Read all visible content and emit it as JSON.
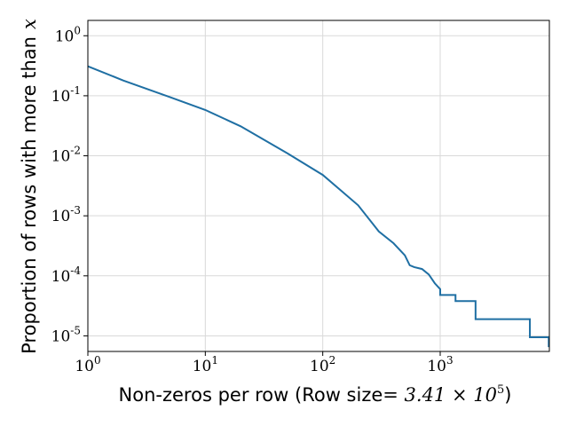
{
  "chart_data": {
    "type": "line",
    "title": "",
    "xlabel": "Non-zeros per row (Row size",
    "xlabel_math": "= 3.41 × 10",
    "xlabel_math_exp": "5",
    "xlabel_close": ")",
    "ylabel": "Proportion of rows with more than",
    "ylabel_math": "x",
    "x_scale": "log",
    "y_scale": "log",
    "xlim": [
      1,
      8500
    ],
    "ylim": [
      5.5e-06,
      1.8
    ],
    "grid": true,
    "color": "#1f6fa3",
    "x_ticks": [
      {
        "base": "10",
        "exp": "0",
        "value": 1
      },
      {
        "base": "10",
        "exp": "1",
        "value": 10
      },
      {
        "base": "10",
        "exp": "2",
        "value": 100
      },
      {
        "base": "10",
        "exp": "3",
        "value": 1000
      }
    ],
    "y_ticks": [
      {
        "base": "10",
        "exp": "0",
        "value": 1
      },
      {
        "base": "10",
        "exp": "-1",
        "value": 0.1
      },
      {
        "base": "10",
        "exp": "-2",
        "value": 0.01
      },
      {
        "base": "10",
        "exp": "-3",
        "value": 0.001
      },
      {
        "base": "10",
        "exp": "-4",
        "value": 0.0001
      },
      {
        "base": "10",
        "exp": "-5",
        "value": 1e-05
      }
    ],
    "series": [
      {
        "x": [
          1,
          2,
          5,
          10,
          20,
          50,
          100,
          200,
          300,
          400,
          500,
          550,
          600,
          700,
          800,
          900,
          1000,
          1000,
          1350,
          1350,
          2000,
          2000,
          5800,
          5800,
          8400,
          8400
        ],
        "y": [
          0.31,
          0.18,
          0.095,
          0.058,
          0.031,
          0.011,
          0.0048,
          0.0015,
          0.00055,
          0.00035,
          0.00022,
          0.00015,
          0.00014,
          0.00013,
          0.000105,
          7.5e-05,
          6e-05,
          4.8e-05,
          4.8e-05,
          3.8e-05,
          3.8e-05,
          1.9e-05,
          1.9e-05,
          9.5e-06,
          9.5e-06,
          6.5e-06
        ]
      }
    ]
  }
}
